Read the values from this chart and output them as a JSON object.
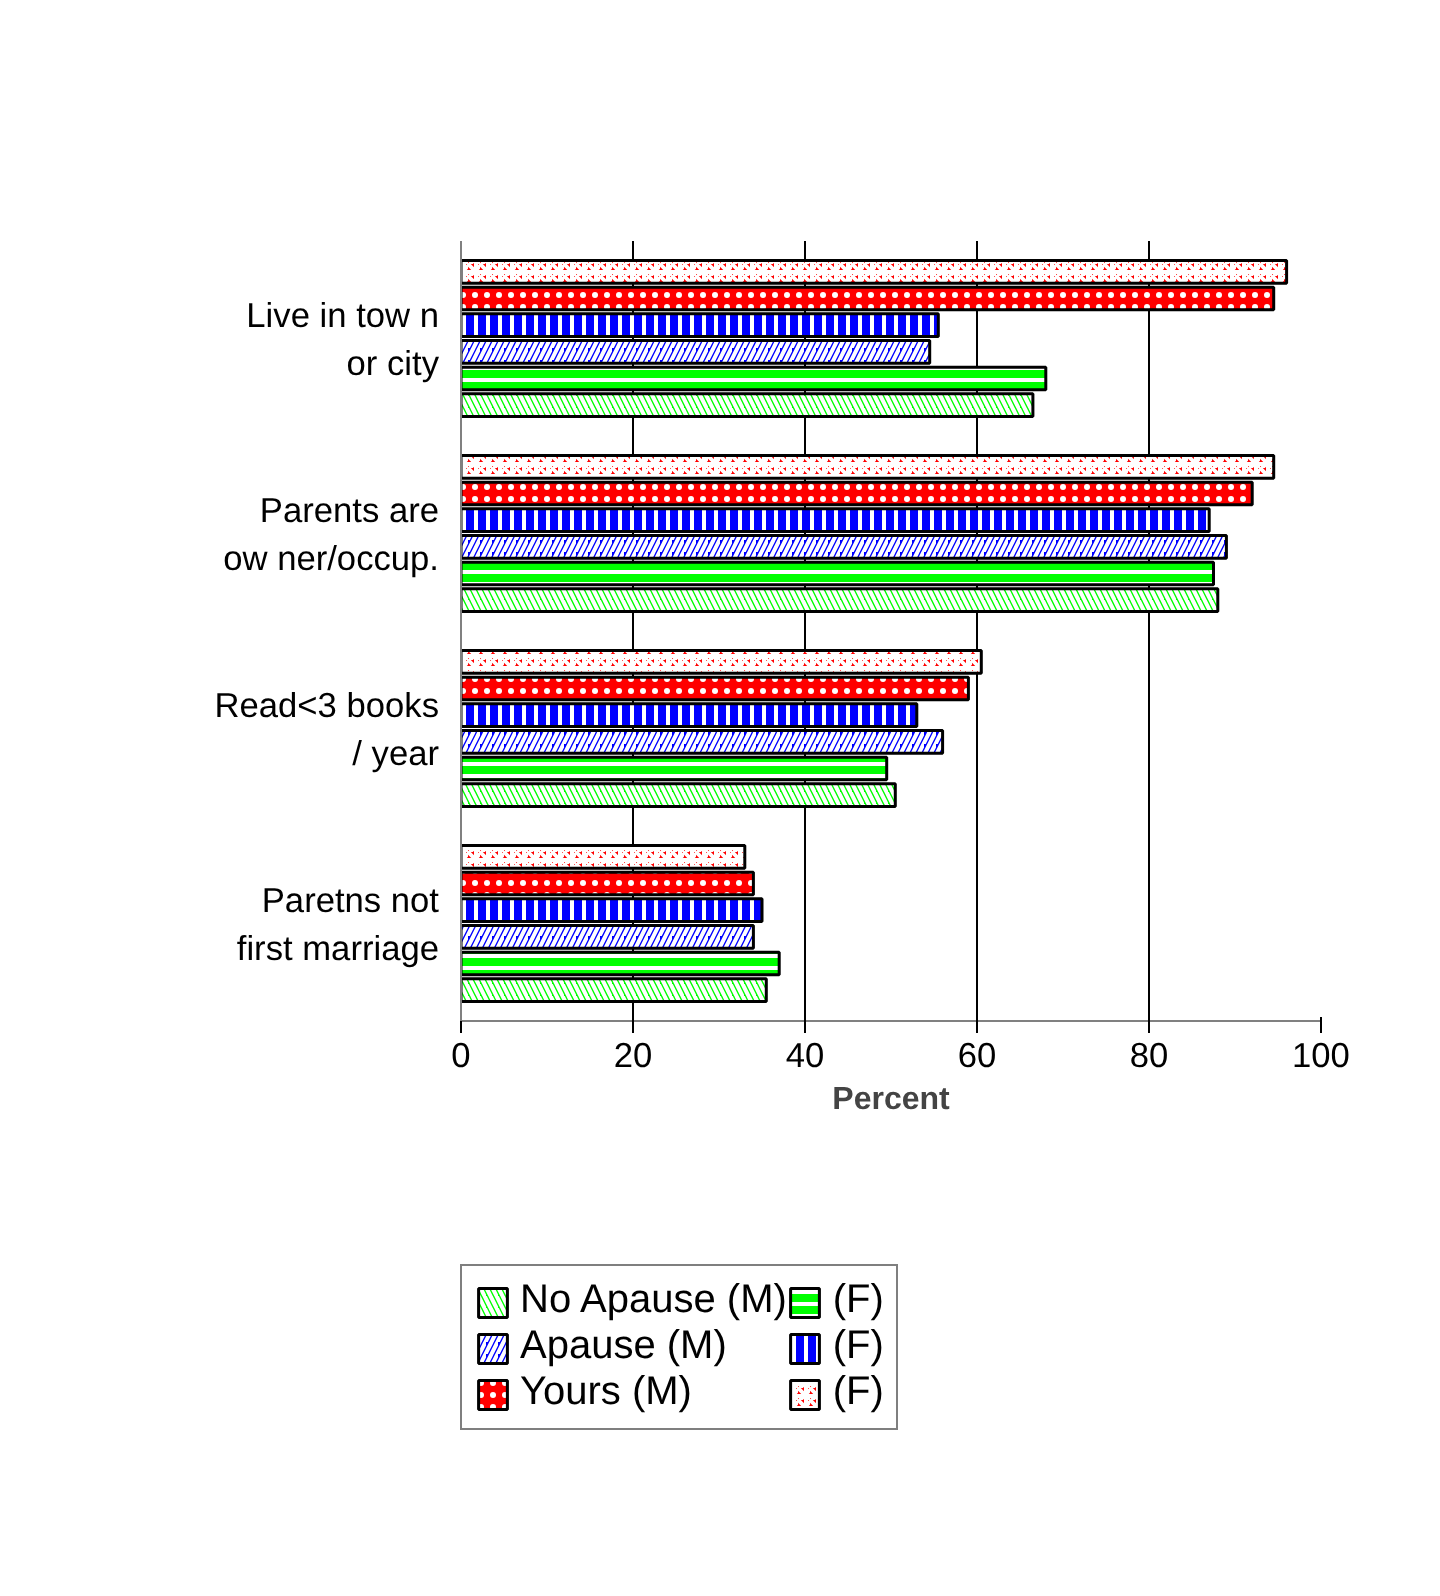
{
  "chart_data": {
    "type": "bar",
    "orientation": "horizontal",
    "xlabel": "Percent",
    "categories": [
      "Live in tow n\nor city",
      "Parents are\now ner/occup.",
      "Read<3 books\n/ year",
      "Paretns not\nfirst marriage"
    ],
    "series": [
      {
        "name": "No Apause (M)",
        "color": "#00ff00",
        "values": [
          66.5,
          88,
          50.5,
          35.5
        ]
      },
      {
        "name": "(F)",
        "color": "#00ff00",
        "values": [
          68,
          87.5,
          49.5,
          37
        ]
      },
      {
        "name": "Apause (M)",
        "color": "#0000ff",
        "values": [
          54.5,
          89,
          56,
          34
        ]
      },
      {
        "name": "(F)",
        "color": "#0000ff",
        "values": [
          55.5,
          87,
          53,
          35
        ]
      },
      {
        "name": "Yours (M)",
        "color": "#ff0000",
        "values": [
          94.5,
          92,
          59,
          34
        ]
      },
      {
        "name": "(F)",
        "color": "#ff0000",
        "values": [
          96,
          94.5,
          60.5,
          33
        ]
      }
    ],
    "xlim": [
      0,
      100
    ],
    "xticks": [
      0,
      20,
      40,
      60,
      80,
      100
    ],
    "grid": "x",
    "legend": "bottom"
  }
}
